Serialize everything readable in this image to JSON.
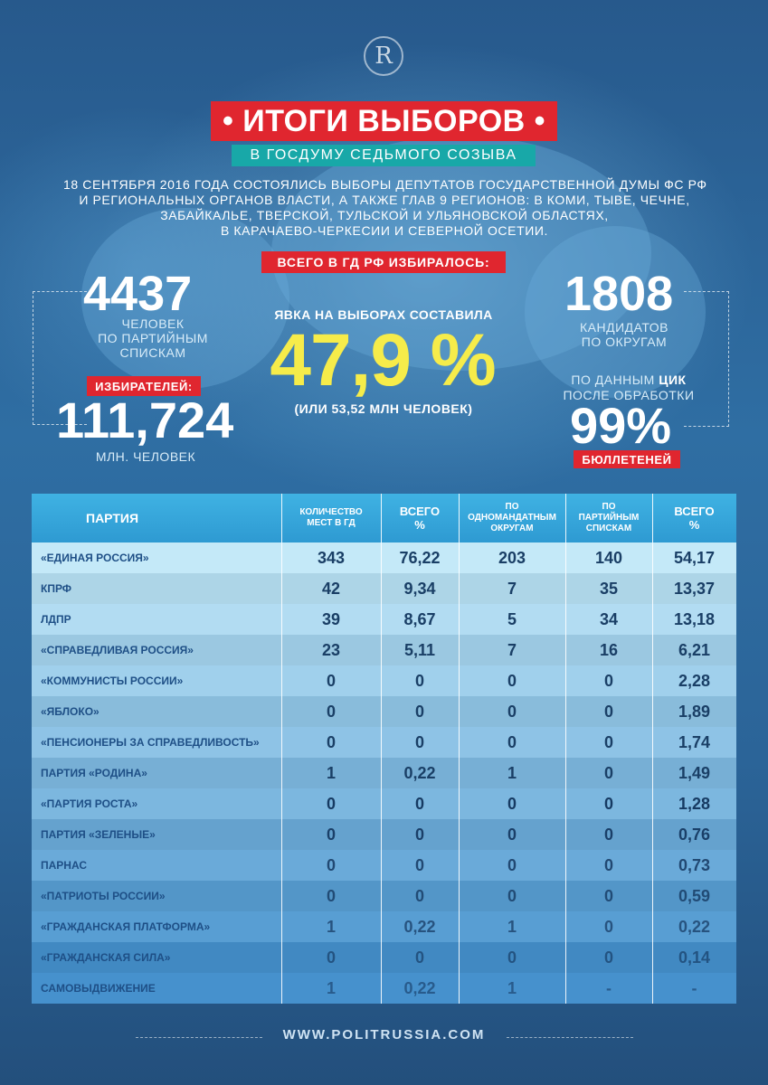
{
  "header": {
    "logo_letter": "R",
    "title": "• ИТОГИ ВЫБОРОВ •",
    "subtitle": "В ГОСДУМУ СЕДЬМОГО СОЗЫВА",
    "intro_lines": [
      "18 СЕНТЯБРЯ 2016 ГОДА СОСТОЯЛИСЬ ВЫБОРЫ ДЕПУТАТОВ ГОСУДАРСТВЕННОЙ ДУМЫ ФС РФ",
      "И РЕГИОНАЛЬНЫХ ОРГАНОВ ВЛАСТИ, А ТАКЖЕ ГЛАВ 9 РЕГИОНОВ: В КОМИ, ТЫВЕ, ЧЕЧНЕ,",
      "ЗАБАЙКАЛЬЕ, ТВЕРСКОЙ, ТУЛЬСКОЙ И УЛЬЯНОВСКОЙ ОБЛАСТЯХ,",
      "В КАРАЧАЕВО-ЧЕРКЕСИИ И СЕВЕРНОЙ ОСЕТИИ."
    ]
  },
  "stats": {
    "total_label": "ВСЕГО В ГД РФ ИЗБИРАЛОСЬ:",
    "party_list": {
      "value": "4437",
      "caption_lines": [
        "ЧЕЛОВЕК",
        "ПО ПАРТИЙНЫМ",
        "СПИСКАМ"
      ]
    },
    "voters": {
      "tag": "ИЗБИРАТЕЛЕЙ:",
      "value": "111,724",
      "caption": "МЛН. ЧЕЛОВЕК"
    },
    "turnout": {
      "label": "ЯВКА НА ВЫБОРАХ СОСТАВИЛА",
      "value": "47,9 %",
      "sub": "(ИЛИ 53,52 МЛН ЧЕЛОВЕК)",
      "fraction": 0.479
    },
    "districts": {
      "value": "1808",
      "caption_lines": [
        "КАНДИДАТОВ",
        "ПО ОКРУГАМ"
      ]
    },
    "cik": {
      "line1_pre": "ПО ДАННЫМ ",
      "line1_bold": "ЦИК",
      "line2": "ПОСЛЕ ОБРАБОТКИ",
      "value": "99%",
      "tag": "БЮЛЛЕТЕНЕЙ"
    }
  },
  "table": {
    "headers": {
      "party": "ПАРТИЯ",
      "seats": "КОЛИЧЕСТВО\nМЕСТ В ГД",
      "seats_pct": "ВСЕГО\n%",
      "single": "ПО\nОДНОМАНДАТНЫМ\nОКРУГАМ",
      "list": "ПО\nПАРТИЙНЫМ\nСПИСКАМ",
      "votes_pct": "ВСЕГО\n%"
    },
    "rows": [
      {
        "party": "«ЕДИНАЯ РОССИЯ»",
        "seats": "343",
        "seats_pct": "76,22",
        "single": "203",
        "list": "140",
        "votes_pct": "54,17"
      },
      {
        "party": "КПРФ",
        "seats": "42",
        "seats_pct": "9,34",
        "single": "7",
        "list": "35",
        "votes_pct": "13,37"
      },
      {
        "party": "ЛДПР",
        "seats": "39",
        "seats_pct": "8,67",
        "single": "5",
        "list": "34",
        "votes_pct": "13,18"
      },
      {
        "party": "«СПРАВЕДЛИВАЯ РОССИЯ»",
        "seats": "23",
        "seats_pct": "5,11",
        "single": "7",
        "list": "16",
        "votes_pct": "6,21"
      },
      {
        "party": "«КОММУНИСТЫ РОССИИ»",
        "seats": "0",
        "seats_pct": "0",
        "single": "0",
        "list": "0",
        "votes_pct": "2,28"
      },
      {
        "party": "«ЯБЛОКО»",
        "seats": "0",
        "seats_pct": "0",
        "single": "0",
        "list": "0",
        "votes_pct": "1,89"
      },
      {
        "party": "«ПЕНСИОНЕРЫ ЗА СПРАВЕДЛИВОСТЬ»",
        "seats": "0",
        "seats_pct": "0",
        "single": "0",
        "list": "0",
        "votes_pct": "1,74"
      },
      {
        "party": "ПАРТИЯ «РОДИНА»",
        "seats": "1",
        "seats_pct": "0,22",
        "single": "1",
        "list": "0",
        "votes_pct": "1,49"
      },
      {
        "party": "«ПАРТИЯ РОСТА»",
        "seats": "0",
        "seats_pct": "0",
        "single": "0",
        "list": "0",
        "votes_pct": "1,28"
      },
      {
        "party": "ПАРТИЯ «ЗЕЛЕНЫЕ»",
        "seats": "0",
        "seats_pct": "0",
        "single": "0",
        "list": "0",
        "votes_pct": "0,76"
      },
      {
        "party": "ПАРНАС",
        "seats": "0",
        "seats_pct": "0",
        "single": "0",
        "list": "0",
        "votes_pct": "0,73"
      },
      {
        "party": "«ПАТРИОТЫ РОССИИ»",
        "seats": "0",
        "seats_pct": "0",
        "single": "0",
        "list": "0",
        "votes_pct": "0,59"
      },
      {
        "party": "«ГРАЖДАНСКАЯ ПЛАТФОРМА»",
        "seats": "1",
        "seats_pct": "0,22",
        "single": "1",
        "list": "0",
        "votes_pct": "0,22"
      },
      {
        "party": "«ГРАЖДАНСКАЯ СИЛА»",
        "seats": "0",
        "seats_pct": "0",
        "single": "0",
        "list": "0",
        "votes_pct": "0,14"
      },
      {
        "party": "САМОВЫДВИЖЕНИЕ",
        "seats": "1",
        "seats_pct": "0,22",
        "single": "1",
        "list": "-",
        "votes_pct": "-"
      }
    ]
  },
  "footer": {
    "site": "WWW.POLITRUSSIA.COM"
  },
  "colors": {
    "accent_red": "#e0262f",
    "accent_teal": "#18a8a8",
    "turnout_yellow": "#f6ec4a",
    "table_header": "#3fb2e3"
  }
}
